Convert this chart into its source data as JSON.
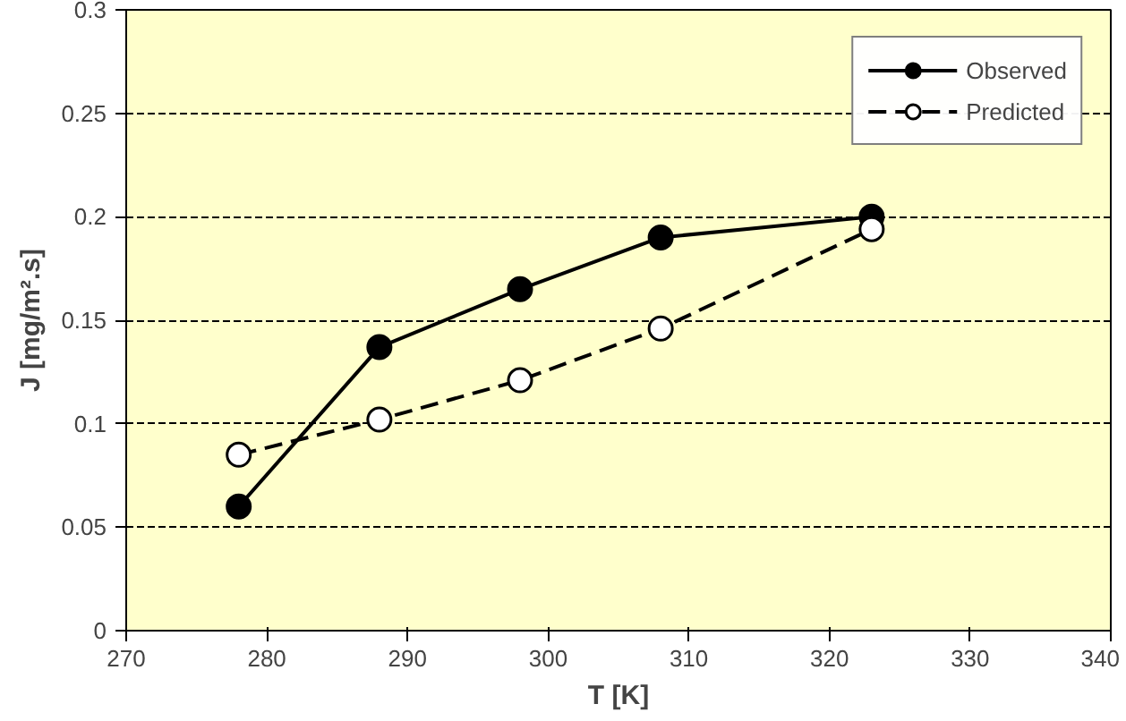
{
  "chart_data": {
    "type": "line",
    "xlabel": "T [K]",
    "ylabel": "J [mg/m².s]",
    "x": [
      278,
      288,
      298,
      308,
      323
    ],
    "series": [
      {
        "name": "Observed",
        "color": "#000000",
        "values": [
          0.06,
          0.137,
          0.165,
          0.19,
          0.2
        ],
        "line_style": "solid"
      },
      {
        "name": "Predicted",
        "color": "#000000",
        "values": [
          0.085,
          0.102,
          0.121,
          0.146,
          0.194
        ],
        "line_style": "dashed"
      }
    ],
    "xlim": [
      270,
      340
    ],
    "xticks": [
      270,
      280,
      290,
      300,
      310,
      320,
      330,
      340
    ],
    "ylim": [
      0,
      0.3
    ],
    "yticks": [
      0,
      0.05,
      0.1,
      0.15,
      0.2,
      0.25,
      0.3
    ],
    "grid": "y",
    "legend": "top right",
    "marker": "circle"
  }
}
